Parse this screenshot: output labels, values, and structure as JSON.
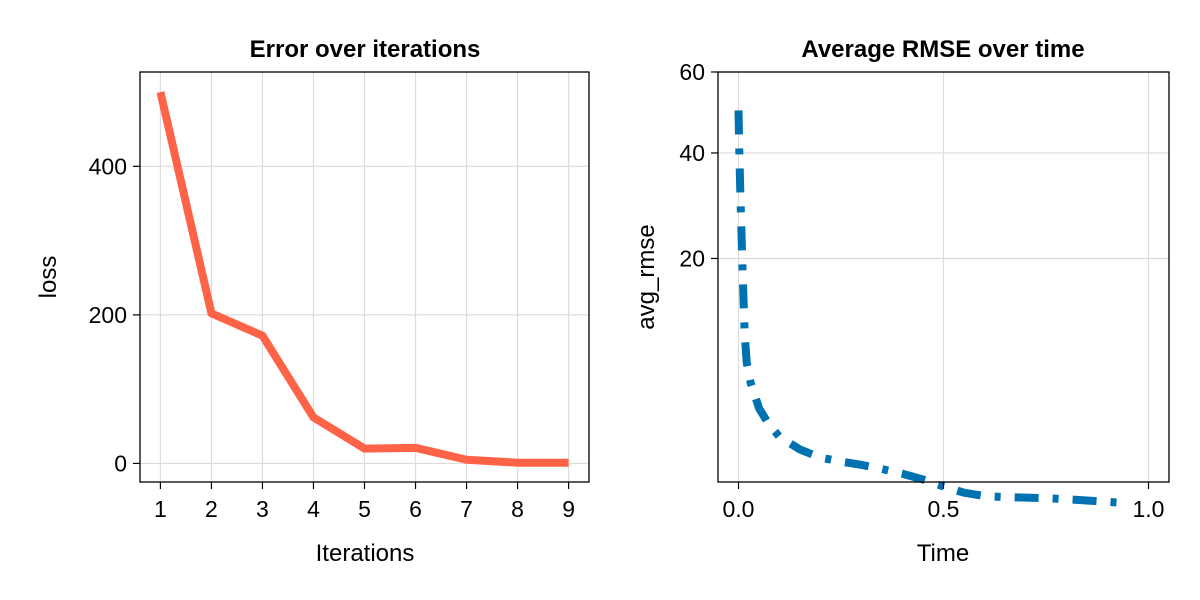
{
  "colors": {
    "loss_line": "#ff6347",
    "rmse_line": "#0072b2",
    "grid": "#dcdcdc",
    "frame": "#000000"
  },
  "chart_data": [
    {
      "type": "line",
      "title": "Error over iterations",
      "xlabel": "Iterations",
      "ylabel": "loss",
      "xticks": [
        1,
        2,
        3,
        4,
        5,
        6,
        7,
        8,
        9
      ],
      "yticks": [
        0,
        200,
        400
      ],
      "xlim": [
        0.6,
        9.4
      ],
      "ylim": [
        -25,
        527
      ],
      "grid": true,
      "legend": "none",
      "series": [
        {
          "x": [
            1,
            2,
            3,
            4,
            5,
            6,
            7,
            8,
            9
          ],
          "values": [
            500,
            202,
            172,
            62,
            20,
            21,
            5,
            1,
            1
          ],
          "style": "solid"
        }
      ]
    },
    {
      "type": "line",
      "title": "Average RMSE over time",
      "xlabel": "Time",
      "ylabel": "avg_rmse",
      "xscale": "linear",
      "yscale": "sqrt",
      "xticks": [
        0.0,
        0.5,
        1.0
      ],
      "xtick_labels": [
        "0.0",
        "0.5",
        "1.0"
      ],
      "yticks": [
        20,
        40,
        60
      ],
      "xlim": [
        -0.05,
        1.05
      ],
      "ylim": [
        0.3,
        60
      ],
      "grid": true,
      "legend": "none",
      "series": [
        {
          "x": [
            0.0,
            0.002,
            0.005,
            0.01,
            0.015,
            0.02,
            0.03,
            0.05,
            0.075,
            0.1,
            0.15,
            0.2,
            0.25,
            0.3,
            0.35,
            0.4,
            0.45,
            0.5,
            0.55,
            0.6,
            0.65,
            0.7,
            0.75,
            0.8,
            0.85,
            0.9,
            0.95
          ],
          "values": [
            50,
            40,
            30,
            18,
            10,
            7,
            5.2,
            3.4,
            2.4,
            1.8,
            1.25,
            0.95,
            0.82,
            0.72,
            0.6,
            0.48,
            0.35,
            0.22,
            0.13,
            0.09,
            0.08,
            0.075,
            0.07,
            0.06,
            0.05,
            0.04,
            0.03
          ],
          "style": "dashdot"
        }
      ]
    }
  ]
}
